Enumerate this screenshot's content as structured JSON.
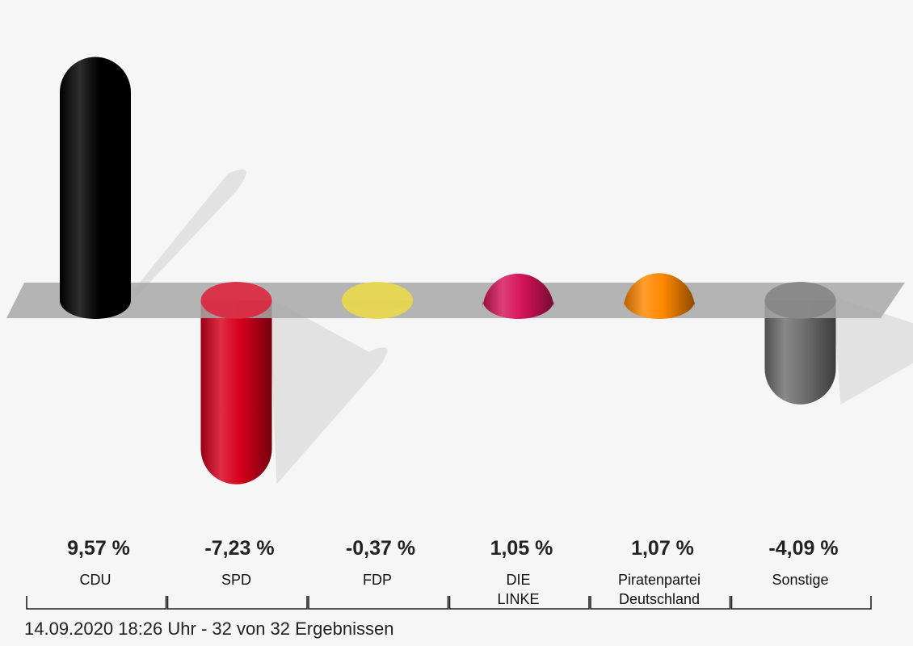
{
  "chart_data": {
    "type": "bar",
    "categories": [
      {
        "label": [
          "CDU"
        ],
        "value": 9.57,
        "value_label": "9,57 %",
        "color": "#000000"
      },
      {
        "label": [
          "SPD"
        ],
        "value": -7.23,
        "value_label": "-7,23 %",
        "color": "#d6001c"
      },
      {
        "label": [
          "FDP"
        ],
        "value": -0.37,
        "value_label": "-0,37 %",
        "color": "#e6d22a"
      },
      {
        "label": [
          "DIE",
          "LINKE"
        ],
        "value": 1.05,
        "value_label": "1,05 %",
        "color": "#d5145a"
      },
      {
        "label": [
          "Piratenpartei",
          "Deutschland"
        ],
        "value": 1.07,
        "value_label": "1,07 %",
        "color": "#ff8800"
      },
      {
        "label": [
          "Sonstige"
        ],
        "value": -4.09,
        "value_label": "-4,09 %",
        "color": "#6f6f6f"
      }
    ],
    "baseline_color": "#a8a8a8"
  },
  "footer": {
    "status": "14.09.2020 18:26 Uhr - 32 von 32 Ergebnissen"
  }
}
